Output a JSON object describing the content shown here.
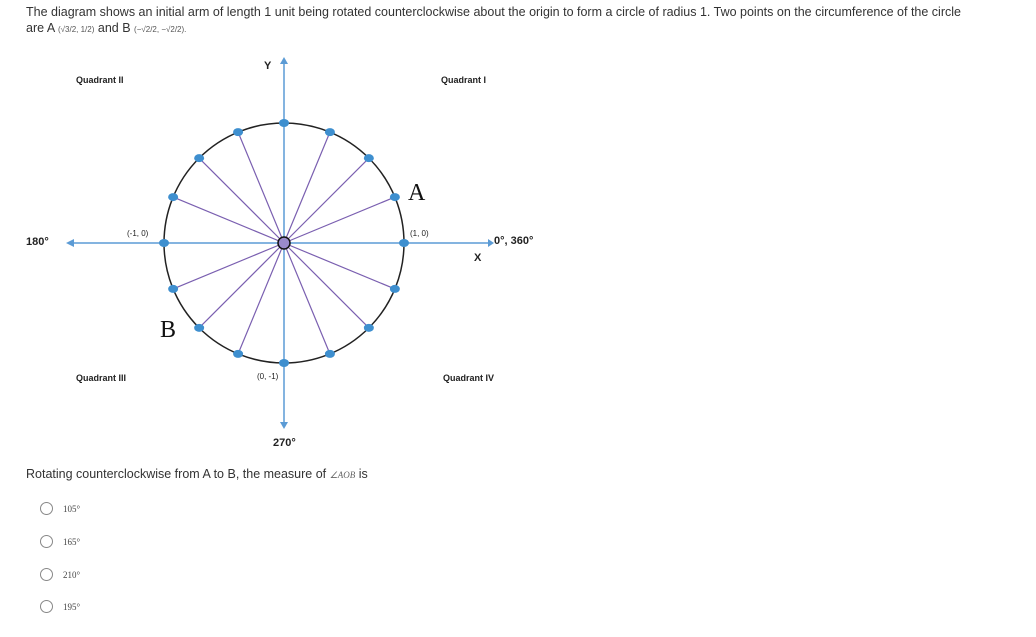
{
  "question": {
    "intro": "The diagram shows an initial arm of length 1 unit being rotated counterclockwise about the origin to form a circle of radius 1. Two points on the circumference of the circle",
    "intro2a": "are A",
    "pointA": "(√3/2, 1/2)",
    "intro2b": "and B",
    "pointB": "(−√2/2, −√2/2).",
    "prompt": "Rotating counterclockwise from A to B, the measure of",
    "angle": "∠AOB",
    "prompt_end": "is"
  },
  "diagram": {
    "y_axis": "Y",
    "x_axis": "X",
    "q1": "Quadrant I",
    "q2": "Quadrant II",
    "q3": "Quadrant III",
    "q4": "Quadrant IV",
    "deg180": "180°",
    "deg0": "0°, 360°",
    "deg270": "270°",
    "p10": "(1, 0)",
    "pm10": "(-1, 0)",
    "p0m1": "(0, -1)",
    "A": "A",
    "B": "B",
    "colors": {
      "axis": "#5b9bd5",
      "spoke": "#7a5fb0",
      "circle": "#222",
      "dot": "#3e8fcf"
    }
  },
  "options": [
    "105°",
    "165°",
    "210°",
    "195°"
  ]
}
